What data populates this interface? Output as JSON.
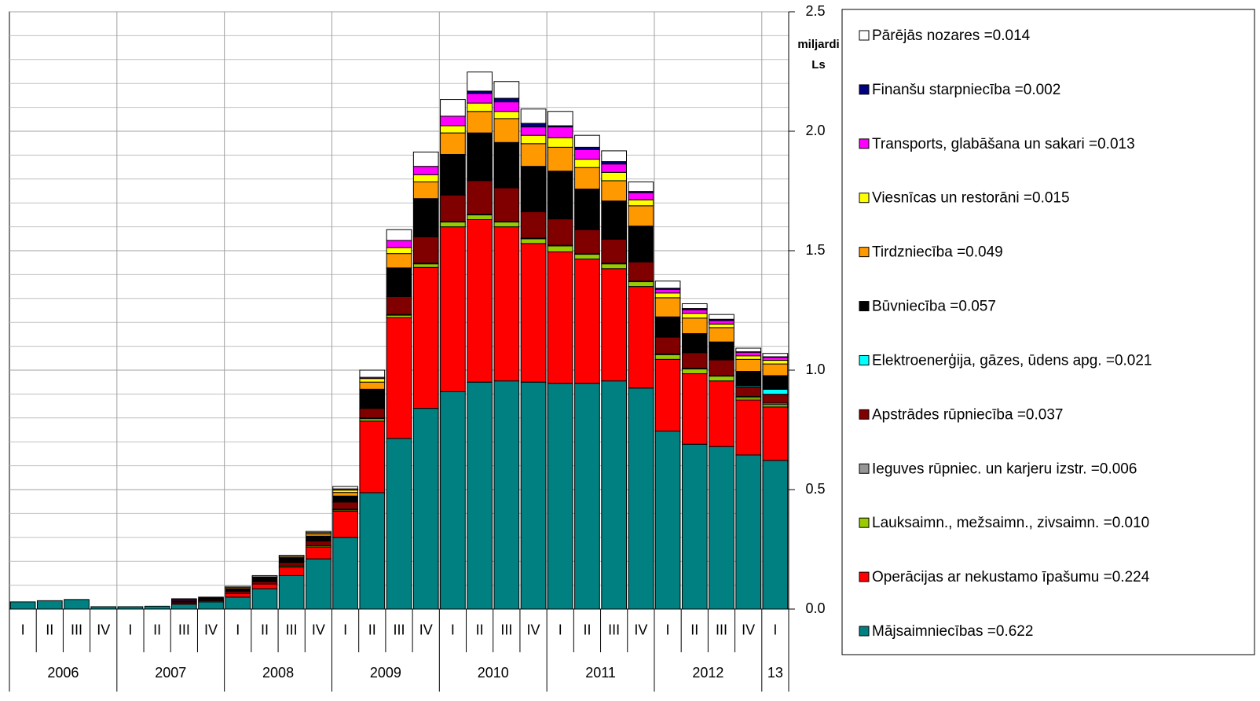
{
  "chart_data": {
    "type": "stacked_bar",
    "y_label": "miljardi Ls",
    "categories": [
      "I",
      "II",
      "III",
      "IV",
      "I",
      "II",
      "III",
      "IV",
      "I",
      "II",
      "III",
      "IV",
      "I",
      "II",
      "III",
      "IV",
      "I",
      "II",
      "III",
      "IV",
      "I",
      "II",
      "III",
      "IV",
      "I",
      "II",
      "III",
      "IV",
      "I"
    ],
    "years": [
      "2006",
      "2007",
      "2008",
      "2009",
      "2010",
      "2011",
      "2012",
      "13"
    ],
    "ylim": [
      0,
      2.5
    ],
    "yticks": [
      {
        "value": 0,
        "label": "0.0"
      },
      {
        "value": 0.5,
        "label": "0.5"
      },
      {
        "value": 1,
        "label": "1.0"
      },
      {
        "value": 1.5,
        "label": "1.5"
      },
      {
        "value": 2,
        "label": "2.0"
      },
      {
        "value": 2.5,
        "label": "2.5"
      }
    ],
    "minor_yticks": [
      0.1,
      0.2,
      0.3,
      0.4,
      0.6,
      0.7,
      0.8,
      0.9,
      1.1,
      1.2,
      1.3,
      1.4,
      1.6,
      1.7,
      1.8,
      1.9,
      2.1,
      2.2,
      2.3,
      2.4
    ],
    "grid": true,
    "legend": "right",
    "series": [
      {
        "name": "Mājsaimniecības =0.622",
        "color": "#008080",
        "values": [
          0.03,
          0.035,
          0.04,
          0.01,
          0.01,
          0.012,
          0.02,
          0.03,
          0.05,
          0.085,
          0.14,
          0.21,
          0.3,
          0.487,
          0.714,
          0.84,
          0.91,
          0.95,
          0.955,
          0.95,
          0.945,
          0.945,
          0.955,
          0.925,
          0.745,
          0.69,
          0.68,
          0.645,
          0.622
        ]
      },
      {
        "name": "Operācijas ar nekustamo īpašumu =0.224",
        "color": "#ff0000",
        "values": [
          0,
          0,
          0,
          0,
          0,
          0,
          0.005,
          0.005,
          0.015,
          0.02,
          0.035,
          0.05,
          0.11,
          0.3,
          0.506,
          0.59,
          0.69,
          0.68,
          0.645,
          0.58,
          0.55,
          0.52,
          0.47,
          0.425,
          0.3,
          0.295,
          0.275,
          0.23,
          0.224
        ]
      },
      {
        "name": "Lauksaimn., mežsaimn., zivsaimn. =0.010",
        "color": "#99cc00",
        "values": [
          0,
          0,
          0,
          0,
          0,
          0,
          0,
          0,
          0,
          0,
          0.005,
          0.005,
          0.005,
          0.01,
          0.01,
          0.015,
          0.02,
          0.02,
          0.02,
          0.02,
          0.025,
          0.02,
          0.02,
          0.02,
          0.02,
          0.02,
          0.02,
          0.01,
          0.01
        ]
      },
      {
        "name": "Ieguves rūpniec. un karjeru izstr. =0.006",
        "color": "#969696",
        "values": [
          0,
          0,
          0,
          0,
          0,
          0,
          0,
          0,
          0,
          0,
          0,
          0,
          0.003,
          0.003,
          0.003,
          0.003,
          0.003,
          0.003,
          0.003,
          0.003,
          0.003,
          0.003,
          0.003,
          0.003,
          0.003,
          0.003,
          0.003,
          0.005,
          0.006
        ]
      },
      {
        "name": "Apstrādes rūpniecība =0.037",
        "color": "#800000",
        "values": [
          0,
          0,
          0,
          0,
          0,
          0,
          0.005,
          0.005,
          0.01,
          0.01,
          0.015,
          0.02,
          0.03,
          0.04,
          0.075,
          0.11,
          0.11,
          0.14,
          0.14,
          0.11,
          0.11,
          0.1,
          0.1,
          0.08,
          0.07,
          0.065,
          0.065,
          0.04,
          0.037
        ]
      },
      {
        "name": "Elektroenerģija, gāzes, ūdens apg. =0.021",
        "color": "#00ffff",
        "values": [
          0,
          0,
          0,
          0,
          0,
          0,
          0,
          0,
          0,
          0,
          0,
          0,
          0,
          0,
          0,
          0,
          0,
          0,
          0,
          0,
          0,
          0,
          0,
          0,
          0,
          0,
          0,
          0.005,
          0.021
        ]
      },
      {
        "name": "Būvniecība =0.057",
        "color": "#000000",
        "values": [
          0,
          0,
          0,
          0,
          0,
          0,
          0.005,
          0.01,
          0.01,
          0.02,
          0.02,
          0.02,
          0.025,
          0.08,
          0.12,
          0.16,
          0.17,
          0.2,
          0.19,
          0.19,
          0.2,
          0.17,
          0.16,
          0.15,
          0.085,
          0.08,
          0.075,
          0.06,
          0.057
        ]
      },
      {
        "name": "Tirdzniecība =0.049",
        "color": "#ff9900",
        "values": [
          0,
          0,
          0,
          0,
          0,
          0,
          0,
          0,
          0.005,
          0,
          0.005,
          0.01,
          0.015,
          0.03,
          0.06,
          0.07,
          0.09,
          0.09,
          0.1,
          0.095,
          0.1,
          0.09,
          0.085,
          0.085,
          0.08,
          0.065,
          0.06,
          0.05,
          0.049
        ]
      },
      {
        "name": "Viesnīcas un restorāni =0.015",
        "color": "#ffff00",
        "values": [
          0,
          0,
          0,
          0,
          0,
          0,
          0,
          0,
          0,
          0,
          0,
          0.005,
          0.01,
          0.015,
          0.025,
          0.03,
          0.03,
          0.035,
          0.03,
          0.035,
          0.04,
          0.035,
          0.035,
          0.025,
          0.02,
          0.02,
          0.015,
          0.015,
          0.015
        ]
      },
      {
        "name": "Transports, glabāšana un sakari =0.013",
        "color": "#ff00ff",
        "values": [
          0,
          0,
          0,
          0,
          0,
          0,
          0.005,
          0,
          0,
          0,
          0,
          0,
          0.005,
          0.005,
          0.03,
          0.035,
          0.04,
          0.04,
          0.04,
          0.035,
          0.045,
          0.04,
          0.035,
          0.03,
          0.015,
          0.015,
          0.015,
          0.015,
          0.013
        ]
      },
      {
        "name": "Finanšu starpniecība =0.002",
        "color": "#000080",
        "values": [
          0,
          0,
          0,
          0,
          0,
          0,
          0,
          0,
          0,
          0,
          0,
          0,
          0,
          0,
          0,
          0,
          0,
          0.01,
          0.015,
          0.015,
          0.005,
          0.01,
          0.01,
          0.005,
          0.005,
          0.005,
          0.005,
          0.002,
          0.002
        ]
      },
      {
        "name": "Pārējās nozares =0.014",
        "color": "#ffffff",
        "values": [
          0,
          0,
          0,
          0,
          0,
          0,
          0.003,
          0,
          0.005,
          0.005,
          0.005,
          0.005,
          0.01,
          0.03,
          0.045,
          0.06,
          0.07,
          0.08,
          0.07,
          0.06,
          0.06,
          0.05,
          0.045,
          0.04,
          0.03,
          0.02,
          0.02,
          0.015,
          0.014
        ]
      }
    ]
  }
}
